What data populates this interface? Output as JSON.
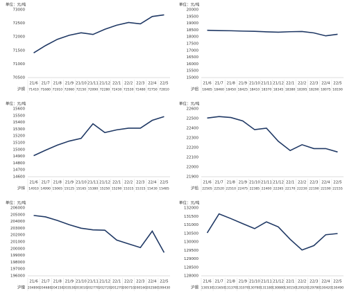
{
  "chart_data": [
    {
      "type": "line",
      "title": "单位：元/吨",
      "categories": [
        "21/6",
        "21/7",
        "21/8",
        "21/9",
        "21/10",
        "21/11",
        "21/12",
        "22/1",
        "22/2",
        "22/3",
        "22/4",
        "22/5"
      ],
      "series": [
        {
          "name": "沪铜",
          "color": "#1f3864",
          "values": [
            71410,
            71680,
            71910,
            72060,
            72150,
            72090,
            72280,
            72430,
            72530,
            72480,
            72750,
            72810
          ]
        }
      ],
      "ylim": [
        70500,
        73000
      ],
      "yticks": [
        70500,
        71000,
        71500,
        72000,
        72500,
        73000
      ]
    },
    {
      "type": "line",
      "title": "单位：元/吨",
      "categories": [
        "21/6",
        "21/7",
        "21/8",
        "21/9",
        "21/10",
        "21/11",
        "21/12",
        "22/1",
        "22/2",
        "22/3",
        "22/4",
        "22/5"
      ],
      "series": [
        {
          "name": "沪铝",
          "color": "#1f3864",
          "values": [
            18485,
            18460,
            18450,
            18425,
            18410,
            18370,
            18345,
            18380,
            18395,
            18290,
            18075,
            18190
          ]
        }
      ],
      "ylim": [
        15000,
        20000
      ],
      "yticks": [
        15000,
        15500,
        16000,
        16500,
        17000,
        17500,
        18000,
        18500,
        19000,
        19500,
        20000
      ]
    },
    {
      "type": "line",
      "title": "单位：元/吨",
      "categories": [
        "21/6",
        "21/7",
        "21/8",
        "21/9",
        "21/10",
        "21/11",
        "21/12",
        "22/1",
        "22/2",
        "22/3",
        "22/4",
        "22/5"
      ],
      "series": [
        {
          "name": "沪锌",
          "color": "#1f3864",
          "values": [
            14910,
            14990,
            15065,
            15125,
            15165,
            15380,
            15250,
            15290,
            15315,
            15315,
            15430,
            15485
          ]
        }
      ],
      "ylim": [
        14600,
        15600
      ],
      "yticks": [
        14600,
        14700,
        14800,
        14900,
        15000,
        15100,
        15200,
        15300,
        15400,
        15500,
        15600
      ]
    },
    {
      "type": "line",
      "title": "单位：元/吨",
      "categories": [
        "21/6",
        "21/7",
        "21/8",
        "21/9",
        "21/10",
        "21/11",
        "21/12",
        "22/1",
        "22/2",
        "22/3",
        "22/4",
        "22/5"
      ],
      "series": [
        {
          "name": "沪铅",
          "color": "#1f3864",
          "values": [
            22505,
            22520,
            22510,
            22475,
            22385,
            22400,
            22265,
            22170,
            22230,
            22190,
            22190,
            22155
          ]
        }
      ],
      "ylim": [
        21900,
        22600
      ],
      "yticks": [
        21900,
        22000,
        22100,
        22200,
        22300,
        22400,
        22500,
        22600
      ]
    },
    {
      "type": "line",
      "title": "单位：元/吨",
      "categories": [
        "21/6",
        "21/7",
        "21/8",
        "21/9",
        "21/10",
        "21/11",
        "21/12",
        "22/1",
        "22/2",
        "22/3",
        "22/4",
        "22/5"
      ],
      "series": [
        {
          "name": "沪镍",
          "color": "#1f3864",
          "values": [
            204890,
            204680,
            204150,
            203530,
            203010,
            202770,
            202720,
            201270,
            200710,
            200160,
            202580,
            199430
          ]
        }
      ],
      "ylim": [
        196000,
        206000
      ],
      "yticks": [
        196000,
        197000,
        198000,
        199000,
        200000,
        201000,
        202000,
        203000,
        204000,
        205000,
        206000
      ]
    },
    {
      "type": "line",
      "title": "单位：元/吨",
      "categories": [
        "21/6",
        "21/7",
        "21/8",
        "21/9",
        "21/10",
        "21/11",
        "21/12",
        "22/1",
        "22/2",
        "22/3",
        "22/4",
        "22/5"
      ],
      "series": [
        {
          "name": "沪锡",
          "color": "#1f3864",
          "values": [
            130530,
            131650,
            131370,
            131070,
            130780,
            131180,
            130880,
            130150,
            129520,
            129780,
            130420,
            130490
          ]
        }
      ],
      "ylim": [
        128000,
        132000
      ],
      "yticks": [
        128000,
        128500,
        129000,
        129500,
        130000,
        130500,
        131000,
        131500,
        132000
      ]
    }
  ]
}
